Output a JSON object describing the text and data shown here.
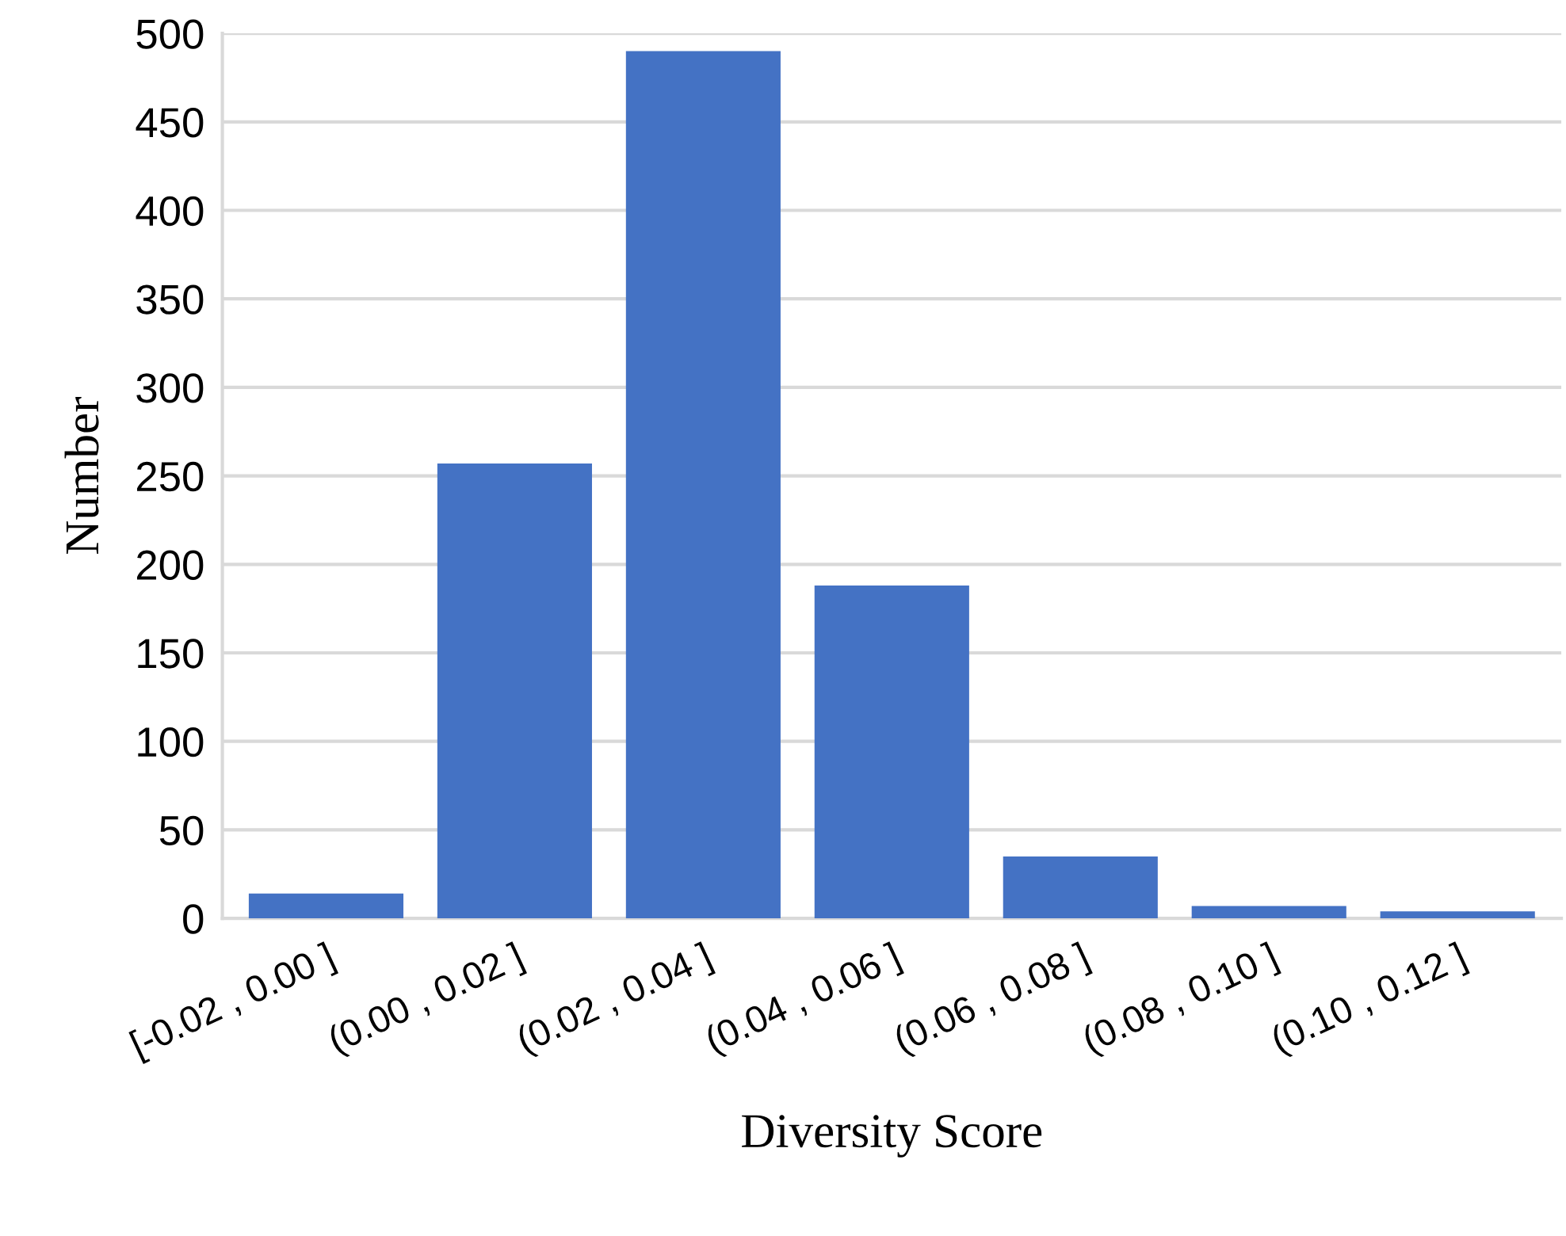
{
  "chart_data": {
    "type": "bar",
    "xlabel": "Diversity Score",
    "ylabel": "Number",
    "categories": [
      "[-0.02 , 0.00 ]",
      "(0.00 , 0.02 ]",
      "(0.02 , 0.04 ]",
      "(0.04 , 0.06 ]",
      "(0.06 , 0.08 ]",
      "(0.08 , 0.10 ]",
      "(0.10 , 0.12 ]"
    ],
    "values": [
      14,
      257,
      490,
      188,
      35,
      7,
      4
    ],
    "color": "#4472c4",
    "ylim": [
      0,
      500
    ],
    "yticks": [
      0,
      50,
      100,
      150,
      200,
      250,
      300,
      350,
      400,
      450,
      500
    ],
    "grid": "y"
  }
}
